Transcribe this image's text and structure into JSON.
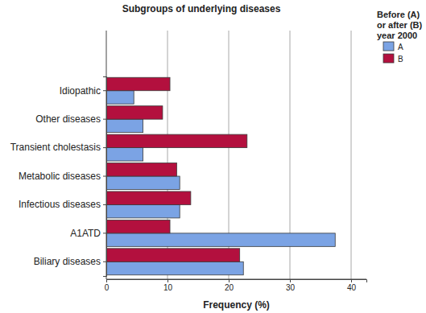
{
  "chart_data": {
    "type": "bar",
    "orientation": "horizontal",
    "title": "Subgroups of underlying diseases",
    "x_label": "Frequency (%)",
    "legend_title": [
      "Before (A)",
      "or after (B)",
      "year 2000"
    ],
    "legend": "right",
    "grid": true,
    "categories": [
      "Idiopathic",
      "Other diseases",
      "Transient cholestasis",
      "Metabolic diseases",
      "Infectious diseases",
      "A1ATD",
      "Biliary diseases"
    ],
    "series": [
      {
        "name": "A",
        "color": "#7ba3e4",
        "values": [
          4.5,
          6.0,
          6.0,
          12.0,
          12.0,
          37.4,
          22.4
        ]
      },
      {
        "name": "B",
        "color": "#b3103e",
        "values": [
          10.4,
          9.2,
          23.0,
          11.5,
          13.8,
          10.4,
          21.8
        ]
      }
    ],
    "xlim": [
      0,
      42.5
    ],
    "xticks": [
      0,
      10,
      20,
      30,
      40
    ]
  }
}
